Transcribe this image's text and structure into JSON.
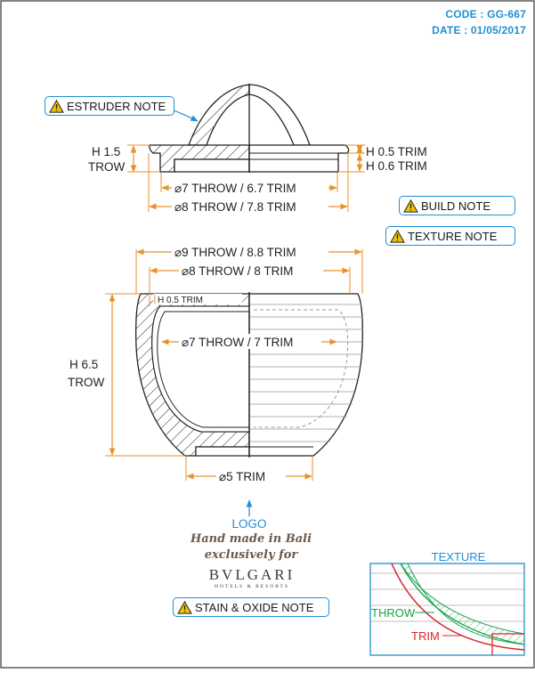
{
  "header": {
    "code": "CODE : GG-667",
    "date": "DATE : 01/05/2017"
  },
  "notes": {
    "estruder": "ESTRUDER NOTE",
    "build": "BUILD NOTE",
    "texture": "TEXTURE NOTE",
    "stain": "STAIN & OXIDE NOTE"
  },
  "lid": {
    "height_left": "H 1.5",
    "height_left_sub": "TROW",
    "trim_top": "H 0.5 TRIM",
    "trim_bottom": "H 0.6 TRIM",
    "dia_inner": "⌀7 THROW / 6.7 TRIM",
    "dia_outer": "⌀8 THROW / 7.8 TRIM"
  },
  "bowl": {
    "dia_top": "⌀9 THROW / 8.8 TRIM",
    "dia_second": "⌀8 THROW / 8 TRIM",
    "rim_trim": "H 0.5 TRIM",
    "dia_inner": "⌀7 THROW / 7 TRIM",
    "height": "H 6.5",
    "height_sub": "TROW",
    "dia_base": "⌀5 TRIM"
  },
  "logo": {
    "label": "LOGO",
    "line1": "Hand made in Bali",
    "line2": "exclusively for",
    "brand": "BVLGARI",
    "brand_sub": "HOTELS & RESORTS"
  },
  "detail": {
    "title": "TEXTURE",
    "throw": "THROW",
    "trim": "TRIM"
  },
  "colors": {
    "accent": "#1f8fd6",
    "dimension": "#e8922c",
    "throw": "#17a14a",
    "trim": "#d7262d"
  }
}
